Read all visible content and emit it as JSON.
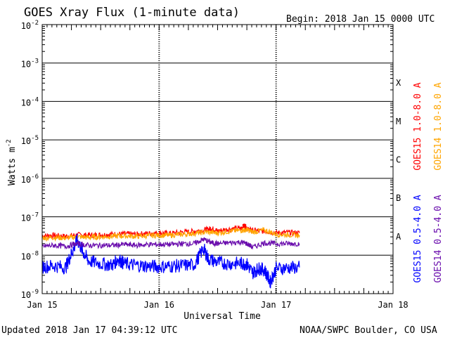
{
  "header": {
    "title": "GOES Xray Flux (1-minute data)",
    "begin": "Begin:  2018 Jan 15 0000 UTC"
  },
  "footer": {
    "updated": "Updated 2018 Jan 17 04:39:12 UTC",
    "credit": "NOAA/SWPC Boulder, CO USA"
  },
  "chart_data": {
    "type": "line",
    "title": "GOES Xray Flux (1-minute data)",
    "xlabel": "Universal Time",
    "ylabel": "Watts m",
    "ylabel_superscript": "-2",
    "yscale": "log",
    "ylim": [
      1e-09,
      0.01
    ],
    "xlim_days": [
      0,
      3
    ],
    "x_ticks": [
      {
        "day": 0,
        "label": "Jan 15"
      },
      {
        "day": 1,
        "label": "Jan 16"
      },
      {
        "day": 2,
        "label": "Jan 17"
      },
      {
        "day": 3,
        "label": "Jan 18"
      }
    ],
    "y_ticks": [
      {
        "exp": -9,
        "base": "10",
        "sup": "-9"
      },
      {
        "exp": -8,
        "base": "10",
        "sup": "-8"
      },
      {
        "exp": -7,
        "base": "10",
        "sup": "-7"
      },
      {
        "exp": -6,
        "base": "10",
        "sup": "-6"
      },
      {
        "exp": -5,
        "base": "10",
        "sup": "-5"
      },
      {
        "exp": -4,
        "base": "10",
        "sup": "-4"
      },
      {
        "exp": -3,
        "base": "10",
        "sup": "-3"
      },
      {
        "exp": -2,
        "base": "10",
        "sup": "-2"
      }
    ],
    "flare_classes": [
      {
        "label": "A",
        "exp": -7.5
      },
      {
        "label": "B",
        "exp": -6.5
      },
      {
        "label": "C",
        "exp": -5.5
      },
      {
        "label": "M",
        "exp": -4.5
      },
      {
        "label": "X",
        "exp": -3.5
      }
    ],
    "grid": true,
    "legend_position": "right",
    "series": [
      {
        "name": "GOES15 1.0-8.0 A",
        "color": "#ff0000",
        "points": [
          [
            0.0,
            3.2e-08
          ],
          [
            0.1,
            3.3e-08
          ],
          [
            0.2,
            3.1e-08
          ],
          [
            0.3,
            3.4e-08
          ],
          [
            0.4,
            3.3e-08
          ],
          [
            0.5,
            3.4e-08
          ],
          [
            0.6,
            3.5e-08
          ],
          [
            0.7,
            3.6e-08
          ],
          [
            0.8,
            3.5e-08
          ],
          [
            0.9,
            3.7e-08
          ],
          [
            1.0,
            3.8e-08
          ],
          [
            1.1,
            3.7e-08
          ],
          [
            1.2,
            4e-08
          ],
          [
            1.3,
            4.2e-08
          ],
          [
            1.4,
            4.6e-08
          ],
          [
            1.45,
            5e-08
          ],
          [
            1.5,
            4.3e-08
          ],
          [
            1.6,
            4.8e-08
          ],
          [
            1.7,
            5e-08
          ],
          [
            1.73,
            6e-08
          ],
          [
            1.76,
            4.7e-08
          ],
          [
            1.8,
            4.4e-08
          ],
          [
            1.9,
            4.2e-08
          ],
          [
            2.0,
            3.8e-08
          ],
          [
            2.1,
            3.9e-08
          ],
          [
            2.2,
            3.8e-08
          ]
        ]
      },
      {
        "name": "GOES14 1.0-8.0 A",
        "color": "#ffa500",
        "points": [
          [
            0.0,
            2.8e-08
          ],
          [
            0.1,
            2.9e-08
          ],
          [
            0.2,
            2.8e-08
          ],
          [
            0.3,
            3e-08
          ],
          [
            0.4,
            2.9e-08
          ],
          [
            0.5,
            3e-08
          ],
          [
            0.6,
            3.1e-08
          ],
          [
            0.7,
            3.2e-08
          ],
          [
            0.8,
            3.1e-08
          ],
          [
            0.9,
            3.2e-08
          ],
          [
            1.0,
            3.3e-08
          ],
          [
            1.1,
            3.3e-08
          ],
          [
            1.2,
            3.5e-08
          ],
          [
            1.3,
            3.7e-08
          ],
          [
            1.4,
            4e-08
          ],
          [
            1.5,
            3.8e-08
          ],
          [
            1.6,
            4.2e-08
          ],
          [
            1.7,
            4.4e-08
          ],
          [
            1.75,
            4.6e-08
          ],
          [
            1.8,
            4e-08
          ],
          [
            1.9,
            4.5e-08
          ],
          [
            2.0,
            3.5e-08
          ],
          [
            2.1,
            3.4e-08
          ],
          [
            2.2,
            3.3e-08
          ]
        ]
      },
      {
        "name": "GOES15 0.5-4.0 A",
        "color": "#0000ff",
        "points": [
          [
            0.0,
            5e-09
          ],
          [
            0.1,
            5.3e-09
          ],
          [
            0.2,
            4.8e-09
          ],
          [
            0.25,
            1.1e-08
          ],
          [
            0.3,
            2.5e-08
          ],
          [
            0.35,
            1.2e-08
          ],
          [
            0.4,
            7e-09
          ],
          [
            0.5,
            6e-09
          ],
          [
            0.6,
            5.5e-09
          ],
          [
            0.65,
            8e-09
          ],
          [
            0.7,
            6e-09
          ],
          [
            0.8,
            5.5e-09
          ],
          [
            0.9,
            5.2e-09
          ],
          [
            1.0,
            5e-09
          ],
          [
            1.1,
            5.2e-09
          ],
          [
            1.2,
            5.4e-09
          ],
          [
            1.3,
            5.6e-09
          ],
          [
            1.38,
            1.5e-08
          ],
          [
            1.42,
            8e-09
          ],
          [
            1.5,
            6.5e-09
          ],
          [
            1.6,
            6e-09
          ],
          [
            1.7,
            6.2e-09
          ],
          [
            1.75,
            5.8e-09
          ],
          [
            1.8,
            3.5e-09
          ],
          [
            1.85,
            4.5e-09
          ],
          [
            1.9,
            4.2e-09
          ],
          [
            1.95,
            2e-09
          ],
          [
            2.0,
            4.5e-09
          ],
          [
            2.1,
            4.7e-09
          ],
          [
            2.2,
            4.8e-09
          ]
        ]
      },
      {
        "name": "GOES14 0.5-4.0 A",
        "color": "#6a0dad",
        "points": [
          [
            0.0,
            1.7e-08
          ],
          [
            0.1,
            1.8e-08
          ],
          [
            0.2,
            1.7e-08
          ],
          [
            0.3,
            2e-08
          ],
          [
            0.4,
            1.8e-08
          ],
          [
            0.5,
            1.8e-08
          ],
          [
            0.6,
            1.8e-08
          ],
          [
            0.7,
            1.9e-08
          ],
          [
            0.8,
            1.8e-08
          ],
          [
            0.9,
            1.9e-08
          ],
          [
            1.0,
            1.9e-08
          ],
          [
            1.1,
            1.9e-08
          ],
          [
            1.2,
            2e-08
          ],
          [
            1.3,
            2e-08
          ],
          [
            1.38,
            2.6e-08
          ],
          [
            1.45,
            2.1e-08
          ],
          [
            1.5,
            2e-08
          ],
          [
            1.6,
            2.1e-08
          ],
          [
            1.7,
            2.2e-08
          ],
          [
            1.75,
            2e-08
          ],
          [
            1.8,
            1.6e-08
          ],
          [
            1.9,
            2.1e-08
          ],
          [
            2.0,
            2e-08
          ],
          [
            2.1,
            2e-08
          ],
          [
            2.2,
            2e-08
          ]
        ]
      }
    ]
  }
}
